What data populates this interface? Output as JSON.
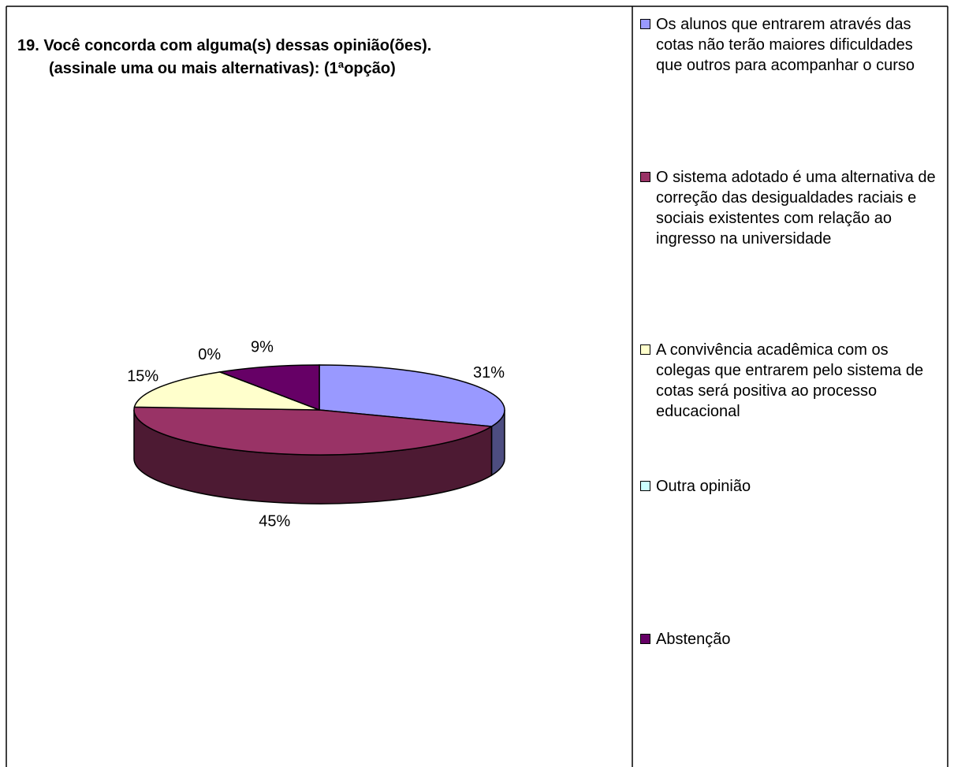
{
  "chart_data": {
    "type": "pie",
    "title": [
      "19.  Você concorda com alguma(s) dessas opinião(ões).",
      "(assinale uma ou mais alternativas): (1ªopção)"
    ],
    "categories": [
      "Os alunos que entrarem através das cotas não terão maiores dificuldades que outros para acompanhar o curso",
      "O sistema adotado é uma alternativa de correção das desigualdades raciais e sociais existentes com relação ao ingresso na universidade",
      "A convivência acadêmica com os colegas que entrarem pelo sistema de cotas será positiva ao processo educacional",
      "Outra opinião",
      "Abstenção"
    ],
    "values": [
      31,
      45,
      15,
      0,
      9
    ],
    "value_labels": [
      "31%",
      "45%",
      "15%",
      "0%",
      "9%"
    ],
    "colors": [
      "#9999ff",
      "#993366",
      "#ffffcc",
      "#ccffff",
      "#660066"
    ],
    "legend": "right"
  }
}
